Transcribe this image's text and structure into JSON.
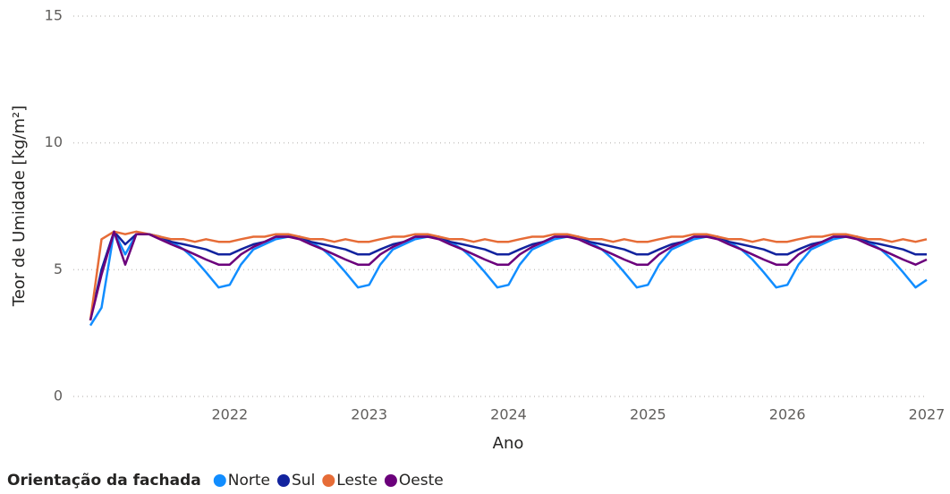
{
  "chart_data": {
    "type": "line",
    "y_label": "Teor de Umidade [kg/m²]",
    "x_label": "Ano",
    "legend_title": "Orientação da fachada",
    "x": [
      2021.0,
      2021.08,
      2021.17,
      2021.25,
      2021.33,
      2021.42,
      2021.5,
      2021.58,
      2021.67,
      2021.75,
      2021.83,
      2021.92,
      2022.0,
      2022.08,
      2022.17,
      2022.25,
      2022.33,
      2022.42,
      2022.5,
      2022.58,
      2022.67,
      2022.75,
      2022.83,
      2022.92,
      2023.0,
      2023.08,
      2023.17,
      2023.25,
      2023.33,
      2023.42,
      2023.5,
      2023.58,
      2023.67,
      2023.75,
      2023.83,
      2023.92,
      2024.0,
      2024.08,
      2024.17,
      2024.25,
      2024.33,
      2024.42,
      2024.5,
      2024.58,
      2024.67,
      2024.75,
      2024.83,
      2024.92,
      2025.0,
      2025.08,
      2025.17,
      2025.25,
      2025.33,
      2025.42,
      2025.5,
      2025.58,
      2025.67,
      2025.75,
      2025.83,
      2025.92,
      2026.0,
      2026.08,
      2026.17,
      2026.25,
      2026.33,
      2026.42,
      2026.5,
      2026.58,
      2026.67,
      2026.75,
      2026.83,
      2026.92,
      2027.0
    ],
    "series": [
      {
        "name": "Norte",
        "color": "#118dff",
        "values": [
          2.8,
          3.5,
          6.5,
          5.6,
          6.4,
          6.4,
          6.3,
          6.1,
          5.8,
          5.4,
          4.9,
          4.3,
          4.4,
          5.2,
          5.8,
          6.0,
          6.2,
          6.3,
          6.3,
          6.1,
          5.8,
          5.4,
          4.9,
          4.3,
          4.4,
          5.2,
          5.8,
          6.0,
          6.2,
          6.3,
          6.3,
          6.1,
          5.8,
          5.4,
          4.9,
          4.3,
          4.4,
          5.2,
          5.8,
          6.0,
          6.2,
          6.3,
          6.3,
          6.1,
          5.8,
          5.4,
          4.9,
          4.3,
          4.4,
          5.2,
          5.8,
          6.0,
          6.2,
          6.3,
          6.3,
          6.1,
          5.8,
          5.4,
          4.9,
          4.3,
          4.4,
          5.2,
          5.8,
          6.0,
          6.2,
          6.3,
          6.3,
          6.1,
          5.8,
          5.4,
          4.9,
          4.3,
          4.6
        ]
      },
      {
        "name": "Sul",
        "color": "#12239e",
        "values": [
          3.0,
          5.0,
          6.5,
          6.0,
          6.4,
          6.4,
          6.3,
          6.1,
          6.0,
          5.9,
          5.8,
          5.6,
          5.6,
          5.8,
          6.0,
          6.1,
          6.3,
          6.3,
          6.3,
          6.1,
          6.0,
          5.9,
          5.8,
          5.6,
          5.6,
          5.8,
          6.0,
          6.1,
          6.3,
          6.3,
          6.3,
          6.1,
          6.0,
          5.9,
          5.8,
          5.6,
          5.6,
          5.8,
          6.0,
          6.1,
          6.3,
          6.3,
          6.3,
          6.1,
          6.0,
          5.9,
          5.8,
          5.6,
          5.6,
          5.8,
          6.0,
          6.1,
          6.3,
          6.3,
          6.3,
          6.1,
          6.0,
          5.9,
          5.8,
          5.6,
          5.6,
          5.8,
          6.0,
          6.1,
          6.3,
          6.3,
          6.3,
          6.1,
          6.0,
          5.9,
          5.8,
          5.6,
          5.6
        ]
      },
      {
        "name": "Leste",
        "color": "#e66c37",
        "values": [
          3.0,
          6.2,
          6.5,
          6.4,
          6.5,
          6.4,
          6.3,
          6.2,
          6.2,
          6.1,
          6.2,
          6.1,
          6.1,
          6.2,
          6.3,
          6.3,
          6.4,
          6.4,
          6.3,
          6.2,
          6.2,
          6.1,
          6.2,
          6.1,
          6.1,
          6.2,
          6.3,
          6.3,
          6.4,
          6.4,
          6.3,
          6.2,
          6.2,
          6.1,
          6.2,
          6.1,
          6.1,
          6.2,
          6.3,
          6.3,
          6.4,
          6.4,
          6.3,
          6.2,
          6.2,
          6.1,
          6.2,
          6.1,
          6.1,
          6.2,
          6.3,
          6.3,
          6.4,
          6.4,
          6.3,
          6.2,
          6.2,
          6.1,
          6.2,
          6.1,
          6.1,
          6.2,
          6.3,
          6.3,
          6.4,
          6.4,
          6.3,
          6.2,
          6.2,
          6.1,
          6.2,
          6.1,
          6.2
        ]
      },
      {
        "name": "Oeste",
        "color": "#6b007b",
        "values": [
          3.0,
          4.8,
          6.5,
          5.2,
          6.4,
          6.4,
          6.2,
          6.0,
          5.8,
          5.6,
          5.4,
          5.2,
          5.2,
          5.6,
          5.9,
          6.1,
          6.3,
          6.3,
          6.2,
          6.0,
          5.8,
          5.6,
          5.4,
          5.2,
          5.2,
          5.6,
          5.9,
          6.1,
          6.3,
          6.3,
          6.2,
          6.0,
          5.8,
          5.6,
          5.4,
          5.2,
          5.2,
          5.6,
          5.9,
          6.1,
          6.3,
          6.3,
          6.2,
          6.0,
          5.8,
          5.6,
          5.4,
          5.2,
          5.2,
          5.6,
          5.9,
          6.1,
          6.3,
          6.3,
          6.2,
          6.0,
          5.8,
          5.6,
          5.4,
          5.2,
          5.2,
          5.6,
          5.9,
          6.1,
          6.3,
          6.3,
          6.2,
          6.0,
          5.8,
          5.6,
          5.4,
          5.2,
          5.4
        ]
      }
    ],
    "xlim": [
      2021,
      2027
    ],
    "xticks": [
      2022,
      2023,
      2024,
      2025,
      2026,
      2027
    ],
    "ylim": [
      0,
      15
    ],
    "yticks": [
      0,
      5,
      10,
      15
    ],
    "grid": true
  }
}
